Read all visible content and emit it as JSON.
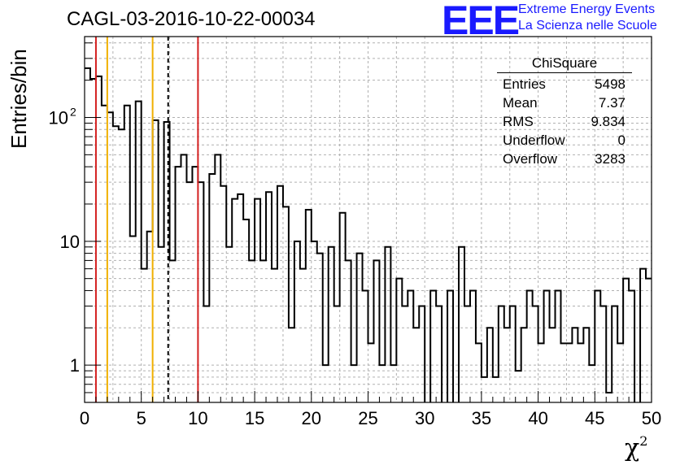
{
  "chart_data": {
    "type": "histogram",
    "title": "CAGL-03-2016-10-22-00034",
    "xlabel": "χ",
    "xlabel_sup": "2",
    "ylabel": "Entries/bin",
    "xlim": [
      0,
      50
    ],
    "ylim": [
      0.5,
      450
    ],
    "yscale": "log",
    "grid": true,
    "bin_width": 0.5,
    "x_ticks": [
      "0",
      "5",
      "10",
      "15",
      "20",
      "25",
      "30",
      "35",
      "40",
      "45",
      "50"
    ],
    "y_ticks": [
      "1",
      "10",
      "10"
    ],
    "y_tick_sup": "2",
    "values": [
      250,
      205,
      215,
      125,
      110,
      85,
      80,
      125,
      11,
      135,
      6,
      12,
      95,
      9,
      92,
      7,
      40,
      50,
      30,
      40,
      30,
      3,
      35,
      50,
      28,
      9,
      22,
      24,
      15,
      7,
      22,
      7,
      25,
      6,
      28,
      19,
      2,
      10,
      6,
      18,
      10,
      8,
      1,
      9,
      3,
      17,
      7,
      1,
      8,
      4,
      1.5,
      7,
      1,
      9,
      1,
      5,
      3,
      4,
      2,
      3,
      0,
      4,
      3,
      0,
      4,
      0,
      9,
      3,
      4,
      1.5,
      0.8,
      2,
      0.8,
      3,
      2,
      3,
      0.9,
      2,
      4,
      3,
      1.5,
      4,
      2,
      4,
      1.5,
      1.5,
      2,
      1.5,
      2,
      1,
      4,
      3,
      0.6,
      3,
      1.5,
      5,
      4,
      0,
      6,
      5
    ],
    "reference_lines": [
      {
        "x": 1,
        "color": "#d42020",
        "style": "solid"
      },
      {
        "x": 2,
        "color": "#f0b000",
        "style": "solid"
      },
      {
        "x": 6,
        "color": "#f0b000",
        "style": "solid"
      },
      {
        "x": 7.37,
        "color": "#000000",
        "style": "dashed"
      },
      {
        "x": 10,
        "color": "#d42020",
        "style": "solid"
      }
    ]
  },
  "stats": {
    "name": "ChiSquare",
    "rows": [
      {
        "label": "Entries",
        "value": "5498"
      },
      {
        "label": "Mean",
        "value": "7.37"
      },
      {
        "label": "RMS",
        "value": "9.834"
      },
      {
        "label": "Underflow",
        "value": "0"
      },
      {
        "label": "Overflow",
        "value": "3283"
      }
    ]
  },
  "logo": {
    "mark": "EEE",
    "line1": "Extreme Energy Events",
    "line2": "La Scienza nelle Scuole",
    "color": "#1a1aff"
  }
}
